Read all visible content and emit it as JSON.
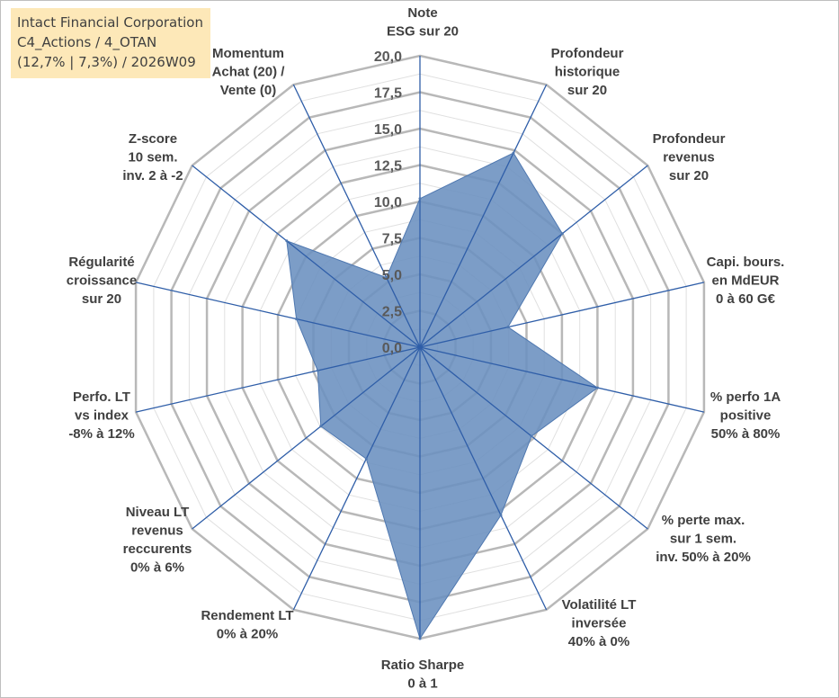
{
  "info": {
    "line1": "Intact Financial Corporation",
    "line2": "C4_Actions / 4_OTAN",
    "line3": "(12,7% | 7,3%) / 2026W09"
  },
  "chart_data": {
    "type": "radar",
    "title": "Intact Financial Corporation",
    "rmin": 0,
    "rmax": 20,
    "ticks": [
      "0,0",
      "2,5",
      "5,0",
      "7,5",
      "10,0",
      "12,5",
      "15,0",
      "17,5",
      "20,0"
    ],
    "categories": [
      [
        "Note",
        "ESG sur 20"
      ],
      [
        "Profondeur",
        "historique",
        "sur 20"
      ],
      [
        "Profondeur",
        "revenus",
        "sur 20"
      ],
      [
        "Capi. bours.",
        "en MdEUR",
        "0 à 60 G€"
      ],
      [
        "% perfo 1A",
        "positive",
        "50% à 80%"
      ],
      [
        "% perte max.",
        "sur 1 sem.",
        "inv. 50% à 20%"
      ],
      [
        "Volatilité LT",
        "inversée",
        "40% à 0%"
      ],
      [
        "Ratio Sharpe",
        "0 à 1"
      ],
      [
        "Rendement LT",
        "0% à 20%"
      ],
      [
        "Niveau LT",
        "revenus",
        "reccurents",
        "0% à 6%"
      ],
      [
        "Perfo. LT",
        "vs index",
        "-8% à 12%"
      ],
      [
        "Régularité",
        "croissance",
        "sur 20"
      ],
      [
        "Z-score",
        "10 sem.",
        "inv. 2 à -2"
      ],
      [
        "Momentum",
        "Achat (20) /",
        "Vente (0)"
      ]
    ],
    "series": [
      {
        "name": "Intact Financial Corporation",
        "values": [
          10.2,
          14.8,
          12.5,
          6.2,
          12.5,
          9.8,
          12.8,
          20.0,
          8.5,
          8.7,
          7.2,
          8.7,
          11.7,
          5.3
        ]
      }
    ],
    "colors": {
      "fill": "#6a8fbf",
      "stroke": "#4f78b0",
      "spoke": "#2f5ea8",
      "grid_major": "#b8b8b8",
      "grid_minor": "#e0e0e0"
    }
  }
}
